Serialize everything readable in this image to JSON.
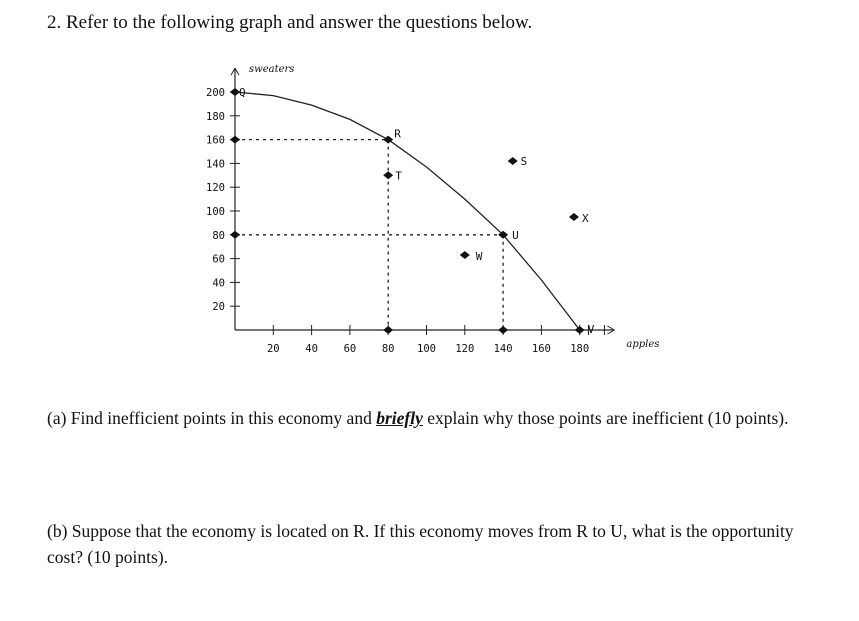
{
  "question": {
    "title": "2. Refer to the following graph and answer the questions below."
  },
  "part_a": {
    "before": "(a) Find inefficient points in this economy and ",
    "emphasis": "briefly",
    "after": " explain why those points are inefficient (10 points)."
  },
  "part_b": {
    "text": "(b) Suppose that the economy is located on R. If this economy moves from R to U, what is the opportunity cost? (10 points)."
  },
  "chart_data": {
    "type": "line",
    "title": "",
    "xlabel": "apples",
    "ylabel": "sweaters",
    "x_ticks": [
      20,
      40,
      60,
      80,
      100,
      120,
      140,
      160,
      180
    ],
    "y_ticks": [
      20,
      40,
      60,
      80,
      100,
      120,
      140,
      160,
      180,
      200
    ],
    "xlim": [
      0,
      195
    ],
    "ylim": [
      0,
      210
    ],
    "grid": false,
    "series": [
      {
        "type": "curve",
        "x": [
          0,
          20,
          40,
          60,
          80,
          100,
          120,
          140,
          160,
          180
        ],
        "y": [
          200,
          197,
          189,
          177,
          160,
          137,
          110,
          80,
          42,
          0
        ]
      }
    ],
    "points": [
      {
        "label": "Q",
        "x": 0,
        "y": 200
      },
      {
        "label": "R",
        "x": 80,
        "y": 160
      },
      {
        "label": "T",
        "x": 80,
        "y": 130
      },
      {
        "label": "S",
        "x": 145,
        "y": 142
      },
      {
        "label": "U",
        "x": 140,
        "y": 80
      },
      {
        "label": "W",
        "x": 120,
        "y": 63
      },
      {
        "label": "X",
        "x": 177,
        "y": 95
      },
      {
        "label": "V",
        "x": 180,
        "y": 0
      }
    ],
    "guides": [
      {
        "from": [
          0,
          160
        ],
        "to": [
          80,
          160
        ]
      },
      {
        "from": [
          80,
          160
        ],
        "to": [
          80,
          0
        ]
      },
      {
        "from": [
          0,
          80
        ],
        "to": [
          140,
          80
        ]
      },
      {
        "from": [
          140,
          80
        ],
        "to": [
          140,
          0
        ]
      }
    ],
    "axis_markers": [
      {
        "axis": "y",
        "value": 200
      },
      {
        "axis": "y",
        "value": 160
      },
      {
        "axis": "y",
        "value": 80
      },
      {
        "axis": "x",
        "value": 80
      },
      {
        "axis": "x",
        "value": 140
      }
    ]
  }
}
